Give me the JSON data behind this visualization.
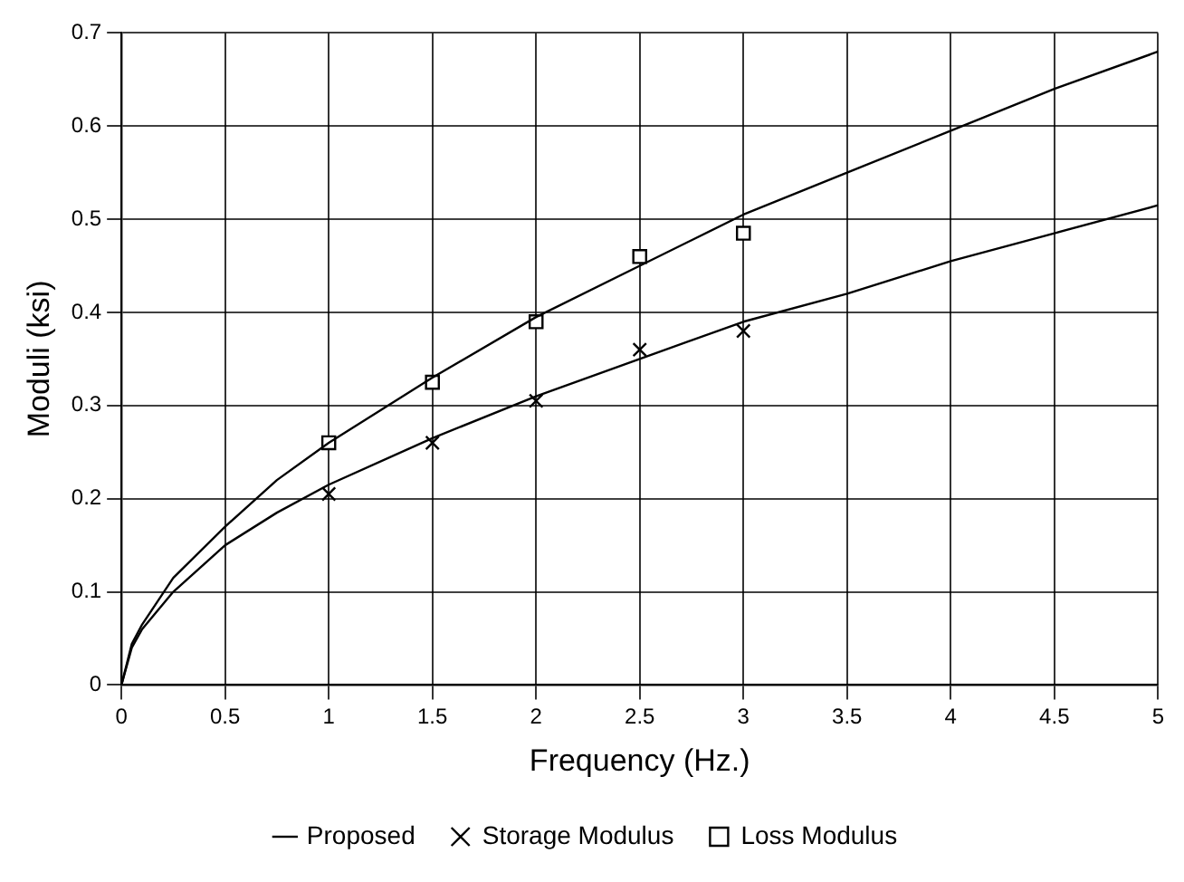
{
  "chart_data": {
    "type": "line",
    "xlabel": "Frequency (Hz.)",
    "ylabel": "Moduli (ksi)",
    "xlim": [
      0,
      5
    ],
    "xticks": [
      0,
      0.5,
      1,
      1.5,
      2,
      2.5,
      3,
      3.5,
      4,
      4.5,
      5
    ],
    "ylim": [
      0,
      0.7
    ],
    "yticks": [
      0,
      0.1,
      0.2,
      0.3,
      0.4,
      0.5,
      0.6,
      0.7
    ],
    "grid": true,
    "legend": "bottom",
    "series": [
      {
        "name": "Proposed",
        "color": "#000000",
        "marker": "none",
        "line_style": "solid",
        "x": [
          0,
          0.05,
          0.1,
          0.25,
          0.5,
          0.75,
          1,
          1.5,
          2,
          2.5,
          3,
          3.5,
          4,
          4.5,
          5
        ],
        "values": [
          0,
          0.044,
          0.065,
          0.115,
          0.17,
          0.22,
          0.26,
          0.33,
          0.395,
          0.45,
          0.505,
          0.55,
          0.595,
          0.64,
          0.68
        ]
      },
      {
        "color": "#000000",
        "marker": "none",
        "line_style": "solid",
        "x": [
          0,
          0.05,
          0.1,
          0.25,
          0.5,
          0.75,
          1,
          1.5,
          2,
          2.5,
          3,
          3.5,
          4,
          4.5,
          5
        ],
        "values": [
          0,
          0.04,
          0.06,
          0.1,
          0.15,
          0.185,
          0.215,
          0.265,
          0.31,
          0.35,
          0.39,
          0.42,
          0.455,
          0.485,
          0.515
        ]
      },
      {
        "name": "Storage Modulus",
        "type": "scatter",
        "color": "#000000",
        "marker": "cross",
        "x": [
          1,
          1.5,
          2,
          2.5,
          3
        ],
        "values": [
          0.205,
          0.26,
          0.305,
          0.36,
          0.38
        ]
      },
      {
        "name": "Loss Modulus",
        "type": "scatter",
        "color": "#000000",
        "marker": "square",
        "x": [
          1,
          1.5,
          2,
          2.5,
          3
        ],
        "values": [
          0.26,
          0.325,
          0.39,
          0.46,
          0.485
        ]
      }
    ]
  }
}
